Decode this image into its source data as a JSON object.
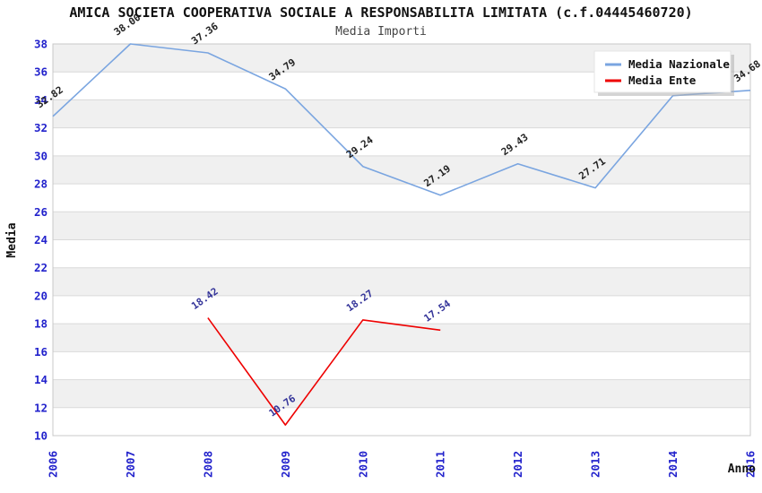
{
  "chart_data": {
    "type": "line",
    "title": "AMICA SOCIETA COOPERATIVA SOCIALE A RESPONSABILITA LIMITATA (c.f.04445460720)",
    "subtitle": "Media Importi",
    "xlabel": "Anno",
    "ylabel": "Media",
    "ylim": [
      10,
      38
    ],
    "ytick_step": 2,
    "categories": [
      "2006",
      "2007",
      "2008",
      "2009",
      "2010",
      "2011",
      "2012",
      "2013",
      "2014",
      "2016"
    ],
    "grid": "horizontal-bands",
    "legend_position": "top-right-inside",
    "series": [
      {
        "name": "Media Nazionale",
        "color": "#7aa5e0",
        "label_color": "#222222",
        "points": [
          {
            "x": "2006",
            "y": 32.82,
            "label": "32.82"
          },
          {
            "x": "2007",
            "y": 38.0,
            "label": "38.00"
          },
          {
            "x": "2008",
            "y": 37.36,
            "label": "37.36"
          },
          {
            "x": "2009",
            "y": 34.79,
            "label": "34.79"
          },
          {
            "x": "2010",
            "y": 29.24,
            "label": "29.24"
          },
          {
            "x": "2011",
            "y": 27.19,
            "label": "27.19"
          },
          {
            "x": "2012",
            "y": 29.43,
            "label": "29.43"
          },
          {
            "x": "2013",
            "y": 27.71,
            "label": "27.71"
          },
          {
            "x": "2014",
            "y": 34.3,
            "label": ""
          },
          {
            "x": "2016",
            "y": 34.68,
            "label": "34.68"
          }
        ]
      },
      {
        "name": "Media Ente",
        "color": "#ee0000",
        "label_color": "#333399",
        "points": [
          {
            "x": "2008",
            "y": 18.42,
            "label": "18.42"
          },
          {
            "x": "2009",
            "y": 10.76,
            "label": "10.76"
          },
          {
            "x": "2010",
            "y": 18.27,
            "label": "18.27"
          },
          {
            "x": "2011",
            "y": 17.54,
            "label": "17.54"
          }
        ]
      }
    ],
    "colors": {
      "title_text": "#111111",
      "subtitle_text": "#444444",
      "tick_label": "#2222cc",
      "band": "#f0f0f0",
      "gridline": "#d9d9d9",
      "plot_border": "#c8c8c8",
      "legend_background": "#ffffff",
      "legend_shadow": "#b0b0b0"
    }
  }
}
